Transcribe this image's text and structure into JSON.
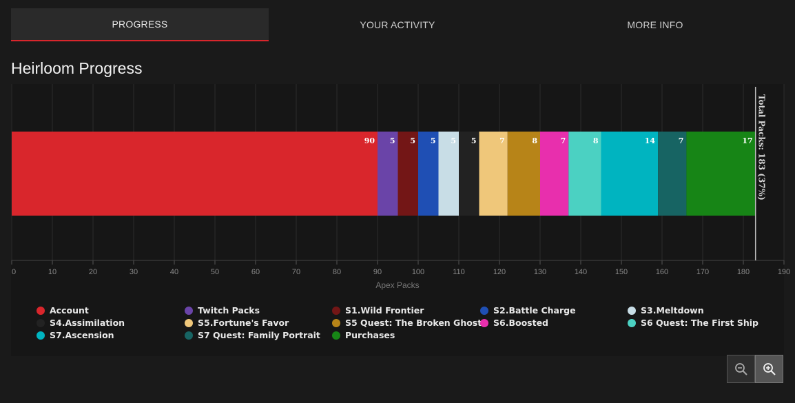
{
  "tabs": [
    {
      "label": "PROGRESS",
      "active": true
    },
    {
      "label": "YOUR ACTIVITY",
      "active": false
    },
    {
      "label": "MORE INFO",
      "active": false
    }
  ],
  "page_title": "Heirloom Progress",
  "chart_data": {
    "type": "bar",
    "orientation": "horizontal",
    "stacked": true,
    "xlabel": "Apex Packs",
    "xlim": [
      0,
      190
    ],
    "xticks": [
      0,
      10,
      20,
      30,
      40,
      50,
      60,
      70,
      80,
      90,
      100,
      110,
      120,
      130,
      140,
      150,
      160,
      170,
      180,
      190
    ],
    "grid": true,
    "legend_position": "bottom",
    "total_label": "Total Packs: 183 (37%)",
    "total_value": 183,
    "series": [
      {
        "name": "Account",
        "value": 90,
        "color": "#d9262c"
      },
      {
        "name": "Twitch Packs",
        "value": 5,
        "color": "#6a44a8"
      },
      {
        "name": "S1.Wild Frontier",
        "value": 5,
        "color": "#731616"
      },
      {
        "name": "S2.Battle Charge",
        "value": 5,
        "color": "#1f4fb4"
      },
      {
        "name": "S3.Meltdown",
        "value": 5,
        "color": "#c8dde6"
      },
      {
        "name": "S4.Assimilation",
        "value": 5,
        "color": "#222222"
      },
      {
        "name": "S5.Fortune's Favor",
        "value": 7,
        "color": "#efc77a"
      },
      {
        "name": "S5 Quest: The Broken Ghost",
        "value": 8,
        "color": "#b78418"
      },
      {
        "name": "S6.Boosted",
        "value": 7,
        "color": "#e82fad"
      },
      {
        "name": "S6 Quest: The First Ship",
        "value": 8,
        "color": "#4bd1c2"
      },
      {
        "name": "S7.Ascension",
        "value": 14,
        "color": "#00b4c0"
      },
      {
        "name": "S7 Quest: Family Portrait",
        "value": 7,
        "color": "#176463"
      },
      {
        "name": "Purchases",
        "value": 17,
        "color": "#178516"
      }
    ]
  },
  "zoom": {
    "out_icon": "zoom-out-icon",
    "in_icon": "zoom-in-icon"
  }
}
